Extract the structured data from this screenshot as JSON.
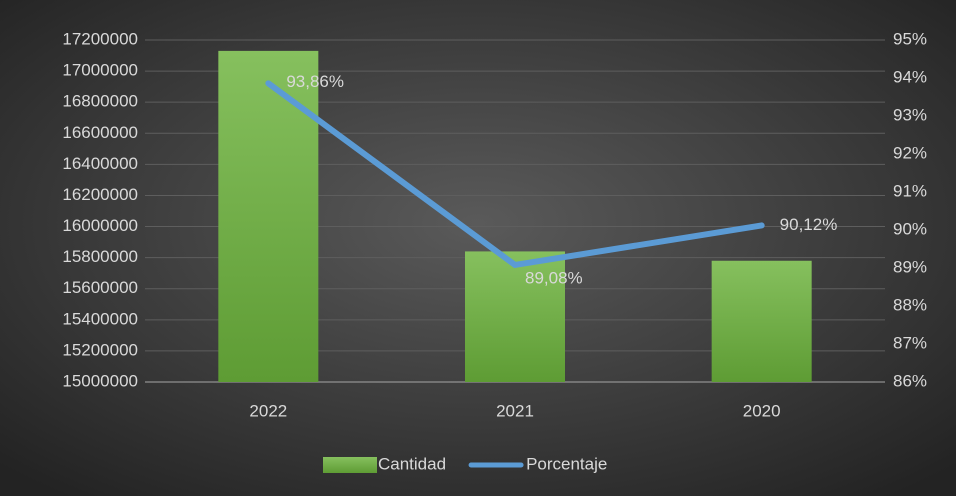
{
  "chart_data": {
    "type": "bar",
    "categories": [
      "2022",
      "2021",
      "2020"
    ],
    "series": [
      {
        "name": "Cantidad",
        "type": "bar",
        "color": "#70ad47",
        "values": [
          17130000,
          15840000,
          15780000
        ]
      },
      {
        "name": "Porcentaje",
        "type": "line",
        "axis": "y2",
        "color": "#5b9bd5",
        "values": [
          93.86,
          89.08,
          90.12
        ],
        "value_labels": [
          "93,86%",
          "89,08%",
          "90,12%"
        ]
      }
    ],
    "ylim": [
      15000000,
      17200000
    ],
    "yticks": [
      15000000,
      15200000,
      15400000,
      15600000,
      15800000,
      16000000,
      16200000,
      16400000,
      16600000,
      16800000,
      17000000,
      17200000
    ],
    "y2lim": [
      86,
      95
    ],
    "y2ticks": [
      {
        "value": 86,
        "label": "86%"
      },
      {
        "value": 87,
        "label": "87%"
      },
      {
        "value": 88,
        "label": "88%"
      },
      {
        "value": 89,
        "label": "89%"
      },
      {
        "value": 90,
        "label": "90%"
      },
      {
        "value": 91,
        "label": "91%"
      },
      {
        "value": 92,
        "label": "92%"
      },
      {
        "value": 93,
        "label": "93%"
      },
      {
        "value": 94,
        "label": "94%"
      },
      {
        "value": 95,
        "label": "95%"
      }
    ],
    "grid": true,
    "legend": "bottom"
  }
}
